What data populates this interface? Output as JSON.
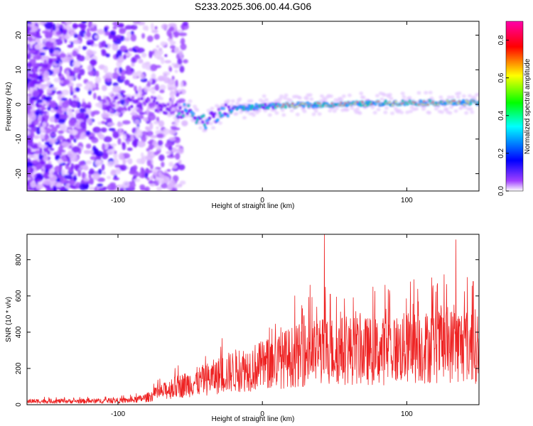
{
  "title": "S233.2025.306.00.44.G06",
  "colors": {
    "snr_line": "#ee2222"
  },
  "chart_data": [
    {
      "type": "heatmap",
      "xlabel": "Height of straight line (km)",
      "ylabel": "Frequency (Hz)",
      "xlim": [
        -163,
        150
      ],
      "ylim": [
        -25,
        24
      ],
      "xticks": [
        -100,
        0,
        100
      ],
      "yticks": [
        -20,
        -10,
        0,
        10,
        20
      ],
      "colorbar": {
        "label": "Normalized spectral amplitude",
        "range": [
          0,
          0.9
        ],
        "ticks": [
          0.0,
          0.2,
          0.4,
          0.6,
          0.8
        ],
        "colormap": [
          "#ffffff",
          "#8800ff",
          "#0000ff",
          "#00ffff",
          "#00ff00",
          "#ffff00",
          "#ff0000",
          "#ff00aa"
        ]
      },
      "ridge": [
        {
          "x": -100,
          "f": 0
        },
        {
          "x": -80,
          "f": 2
        },
        {
          "x": -70,
          "f": -1
        },
        {
          "x": -60,
          "f": -2
        },
        {
          "x": -50,
          "f": -2
        },
        {
          "x": -40,
          "f": -5
        },
        {
          "x": -30,
          "f": -3
        },
        {
          "x": -20,
          "f": -1
        },
        {
          "x": -10,
          "f": -1
        },
        {
          "x": 0,
          "f": -0.5
        },
        {
          "x": 50,
          "f": 0
        },
        {
          "x": 100,
          "f": 0.5
        },
        {
          "x": 150,
          "f": 0.5
        }
      ]
    },
    {
      "type": "line",
      "xlabel": "Height of straight line (km)",
      "ylabel": "SNR (10 * v/v)",
      "xlim": [
        -163,
        150
      ],
      "ylim": [
        0,
        940
      ],
      "xticks": [
        -100,
        0,
        100
      ],
      "yticks": [
        0,
        200,
        400,
        600,
        800
      ],
      "envelope": [
        {
          "x": -163,
          "y": 20
        },
        {
          "x": -120,
          "y": 20
        },
        {
          "x": -90,
          "y": 25
        },
        {
          "x": -80,
          "y": 40
        },
        {
          "x": -70,
          "y": 70
        },
        {
          "x": -60,
          "y": 100
        },
        {
          "x": -40,
          "y": 140
        },
        {
          "x": -20,
          "y": 190
        },
        {
          "x": 0,
          "y": 220
        },
        {
          "x": 20,
          "y": 270
        },
        {
          "x": 40,
          "y": 300
        },
        {
          "x": 60,
          "y": 310
        },
        {
          "x": 80,
          "y": 300
        },
        {
          "x": 100,
          "y": 320
        },
        {
          "x": 120,
          "y": 330
        },
        {
          "x": 140,
          "y": 340
        },
        {
          "x": 150,
          "y": 330
        }
      ],
      "peaks": [
        {
          "x": 43,
          "y": 940
        },
        {
          "x": 134,
          "y": 910
        },
        {
          "x": 33,
          "y": 660
        },
        {
          "x": 146,
          "y": 680
        },
        {
          "x": 118,
          "y": 640
        },
        {
          "x": 105,
          "y": 690
        },
        {
          "x": 85,
          "y": 660
        },
        {
          "x": 47,
          "y": 610
        }
      ]
    }
  ]
}
